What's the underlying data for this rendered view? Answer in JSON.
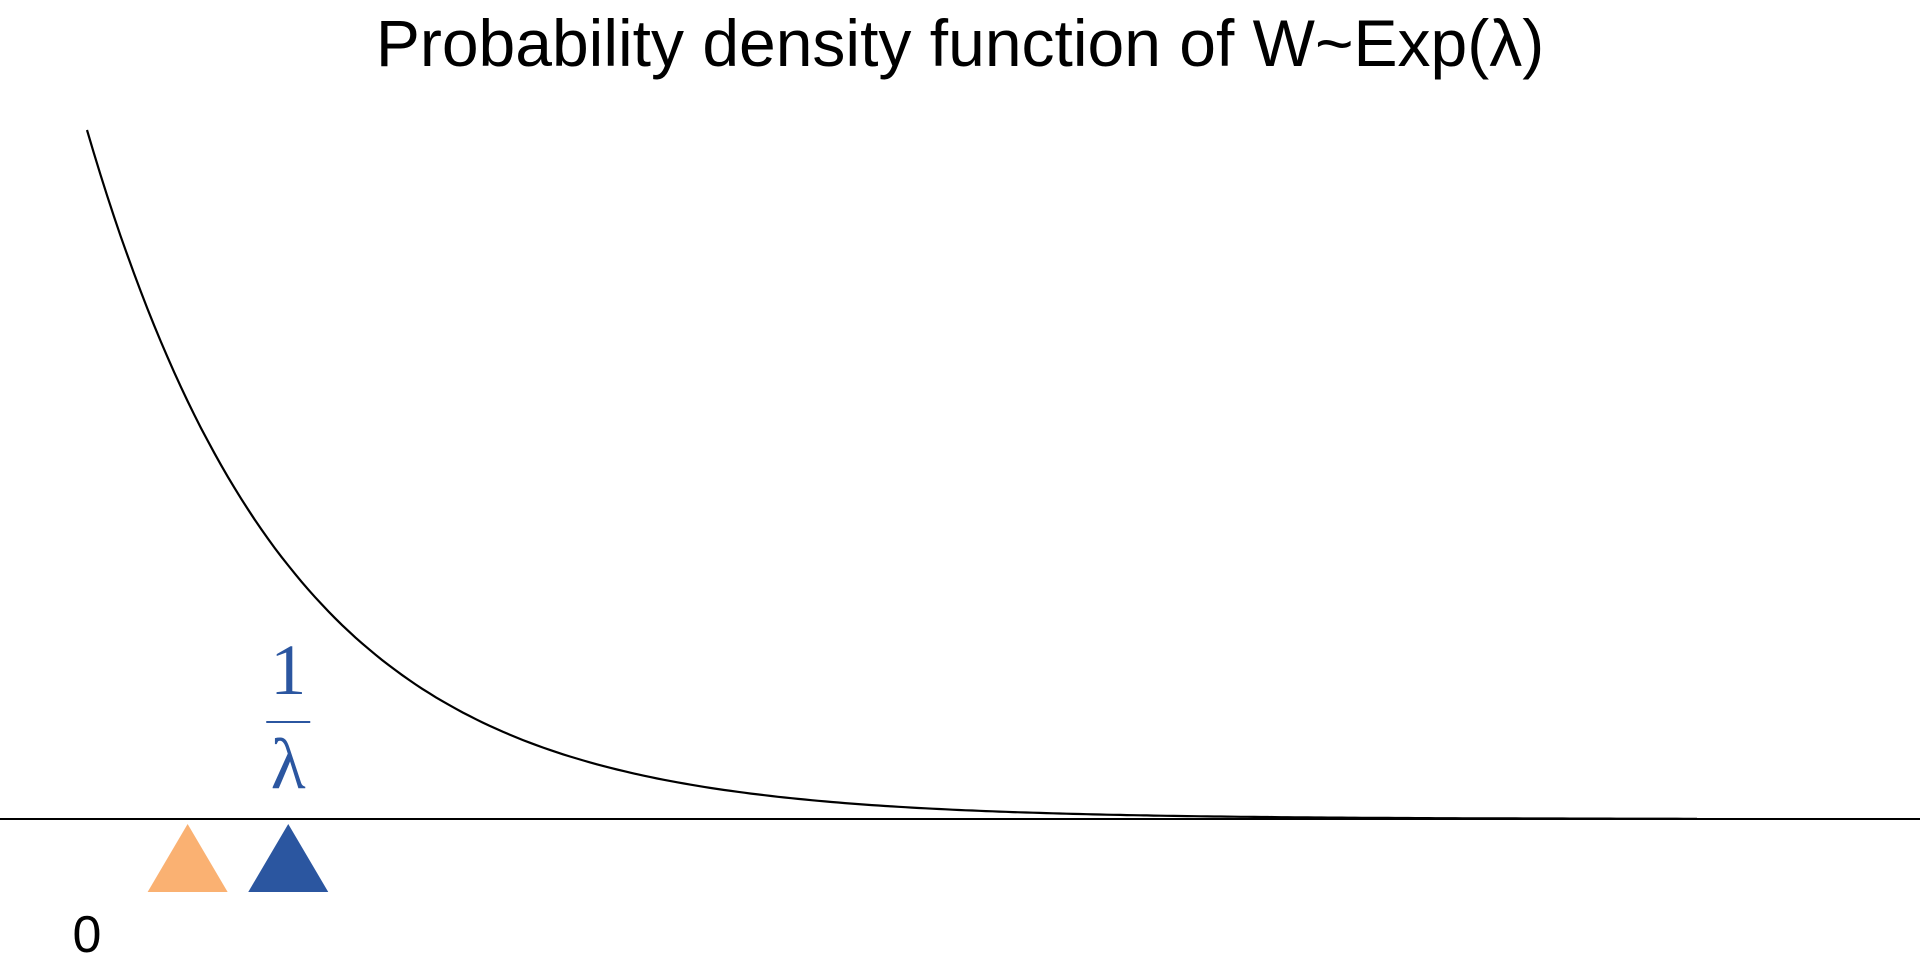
{
  "chart_data": {
    "type": "line",
    "title": "Probability density function of W~Exp(λ)",
    "xlabel": "",
    "ylabel": "",
    "x_tick_labels": [
      "0"
    ],
    "lambda": 1,
    "xlim": [
      0,
      8
    ],
    "ylim": [
      0,
      1
    ],
    "grid": false,
    "series": [
      {
        "values_desc": "",
        "formula": "lambda*exp(-lambda*x)",
        "x_start": 0,
        "x_end": 8
      }
    ],
    "annotations": {
      "mean_label_numerator": "1",
      "mean_label_denominator": "λ",
      "mean_marker_x": 1,
      "mean_marker_color": "#2b56a0",
      "second_marker_x": 0.5,
      "second_marker_color": "#fab172"
    }
  }
}
